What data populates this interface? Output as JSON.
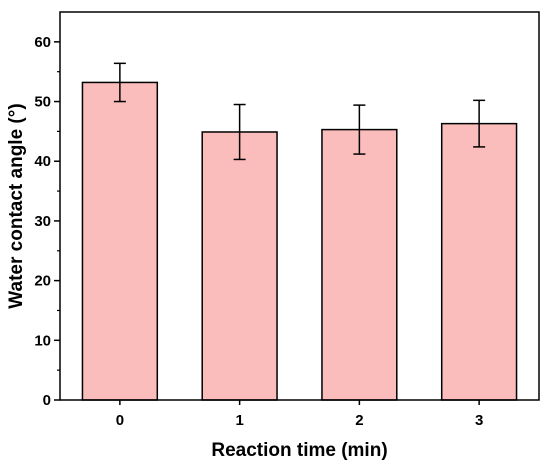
{
  "chart_data": {
    "type": "bar",
    "title": "",
    "xlabel": "Reaction time (min)",
    "ylabel": "Water contact angle (°)",
    "categories": [
      "0",
      "1",
      "2",
      "3"
    ],
    "values": [
      53.2,
      44.9,
      45.3,
      46.3
    ],
    "errors": [
      3.2,
      4.6,
      4.1,
      3.9
    ],
    "ylim": [
      0,
      65
    ],
    "yticks": [
      0,
      10,
      20,
      30,
      40,
      50,
      60
    ],
    "grid": false,
    "legend": "none",
    "bar_color": "#fbbcbc",
    "edge_color": "#000000"
  }
}
